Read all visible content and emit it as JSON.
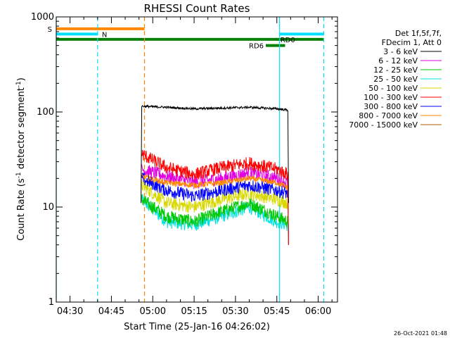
{
  "chart_data": {
    "type": "line",
    "title": "RHESSI Count Rates",
    "xlabel": "Start Time (25-Jan-16 04:26:02)",
    "ylabel": "Count Rate (s⁻¹ detector segment⁻¹)",
    "ylabel_main": "Count Rate (s",
    "ylabel_sup1": "-1",
    "ylabel_mid": " detector segment",
    "ylabel_sup2": "-1",
    "ylabel_end": ")",
    "y_scale": "log",
    "xlim": [
      "04:25",
      "06:07"
    ],
    "ylim": [
      1,
      1000
    ],
    "x_ticks": [
      "04:30",
      "04:45",
      "05:00",
      "05:15",
      "05:30",
      "05:45",
      "06:00"
    ],
    "y_ticks": [
      {
        "value": 1,
        "label": "1"
      },
      {
        "value": 10,
        "label": "10"
      },
      {
        "value": 100,
        "label": "100"
      },
      {
        "value": 1000,
        "label": "1000"
      }
    ],
    "grid": false,
    "legend_position": "right",
    "legend_header": [
      "Det 1f,5f,7f,",
      "FDecim 1, Att 0"
    ],
    "series": [
      {
        "name": "3 - 6 keV",
        "color": "#000000",
        "x": [
          "04:56",
          "05:05",
          "05:15",
          "05:25",
          "05:35",
          "05:45",
          "05:49"
        ],
        "values": [
          115,
          112,
          108,
          110,
          112,
          108,
          105
        ]
      },
      {
        "name": "6 - 12 keV",
        "color": "#e000e0",
        "x": [
          "04:56",
          "05:05",
          "05:15",
          "05:25",
          "05:35",
          "05:45",
          "05:49"
        ],
        "values": [
          25,
          21,
          18,
          20,
          23,
          20,
          18
        ]
      },
      {
        "name": "12 - 25 keV",
        "color": "#00c800",
        "x": [
          "04:56",
          "05:05",
          "05:15",
          "05:25",
          "05:35",
          "05:45",
          "05:49"
        ],
        "values": [
          12,
          8,
          7,
          9,
          11,
          8,
          7
        ]
      },
      {
        "name": "25 - 50 keV",
        "color": "#00e0e0",
        "x": [
          "04:56",
          "05:05",
          "05:15",
          "05:25",
          "05:35",
          "05:45",
          "05:49"
        ],
        "values": [
          12,
          7,
          6.5,
          8,
          10,
          7,
          6.5
        ]
      },
      {
        "name": "50 - 100 keV",
        "color": "#d8d800",
        "x": [
          "04:56",
          "05:05",
          "05:15",
          "05:25",
          "05:35",
          "05:45",
          "05:49"
        ],
        "values": [
          17,
          11,
          10,
          12,
          14,
          12,
          11
        ]
      },
      {
        "name": "100 - 300 keV",
        "color": "#ff0000",
        "x": [
          "04:56",
          "05:05",
          "05:15",
          "05:25",
          "05:35",
          "05:45",
          "05:49"
        ],
        "values": [
          36,
          26,
          22,
          26,
          29,
          25,
          22
        ]
      },
      {
        "name": "300 - 800 keV",
        "color": "#0000ff",
        "x": [
          "04:56",
          "05:05",
          "05:15",
          "05:25",
          "05:35",
          "05:45",
          "05:49"
        ],
        "values": [
          20,
          15,
          13,
          15,
          17,
          15,
          14
        ]
      },
      {
        "name": "800 - 7000 keV",
        "color": "#ff8800",
        "x": [
          "04:56",
          "05:05",
          "05:15",
          "05:25",
          "05:35",
          "05:45",
          "05:49"
        ],
        "values": [
          21,
          18,
          17,
          18,
          20,
          18,
          16
        ]
      },
      {
        "name": "7000 - 15000 keV",
        "color": "#b06000",
        "x": [],
        "values": []
      }
    ],
    "flag_bars": [
      {
        "label": "S",
        "color": "#ff8800",
        "x_start": "04:25",
        "x_end": "04:57",
        "value": 750
      },
      {
        "label": "N",
        "color": "#00e0ff",
        "x_start": "04:25",
        "x_end": "04:40",
        "value": 660
      },
      {
        "label": "",
        "color": "#00e0ff",
        "x_start": "05:46",
        "x_end": "06:02",
        "value": 660
      },
      {
        "label": "",
        "color": "#008000",
        "x_start": "04:25",
        "x_end": "06:02",
        "value": 580
      },
      {
        "label": "RD0",
        "color": "#008000",
        "x_start": "05:45",
        "x_end": "05:47",
        "value": 580
      },
      {
        "label": "RD6",
        "color": "#008000",
        "x_start": "05:41",
        "x_end": "05:48",
        "value": 500
      }
    ],
    "vertical_markers": [
      {
        "x": "04:25",
        "color": "#00e0ff",
        "style": "solid"
      },
      {
        "x": "04:40",
        "color": "#00e0ff",
        "style": "dashed"
      },
      {
        "x": "04:57",
        "color": "#ff8800",
        "style": "dashed"
      },
      {
        "x": "05:46",
        "color": "#00e0ff",
        "style": "solid"
      },
      {
        "x": "06:02",
        "color": "#00e0ff",
        "style": "dashed"
      }
    ],
    "footer_timestamp": "26-Oct-2021 01:48"
  }
}
